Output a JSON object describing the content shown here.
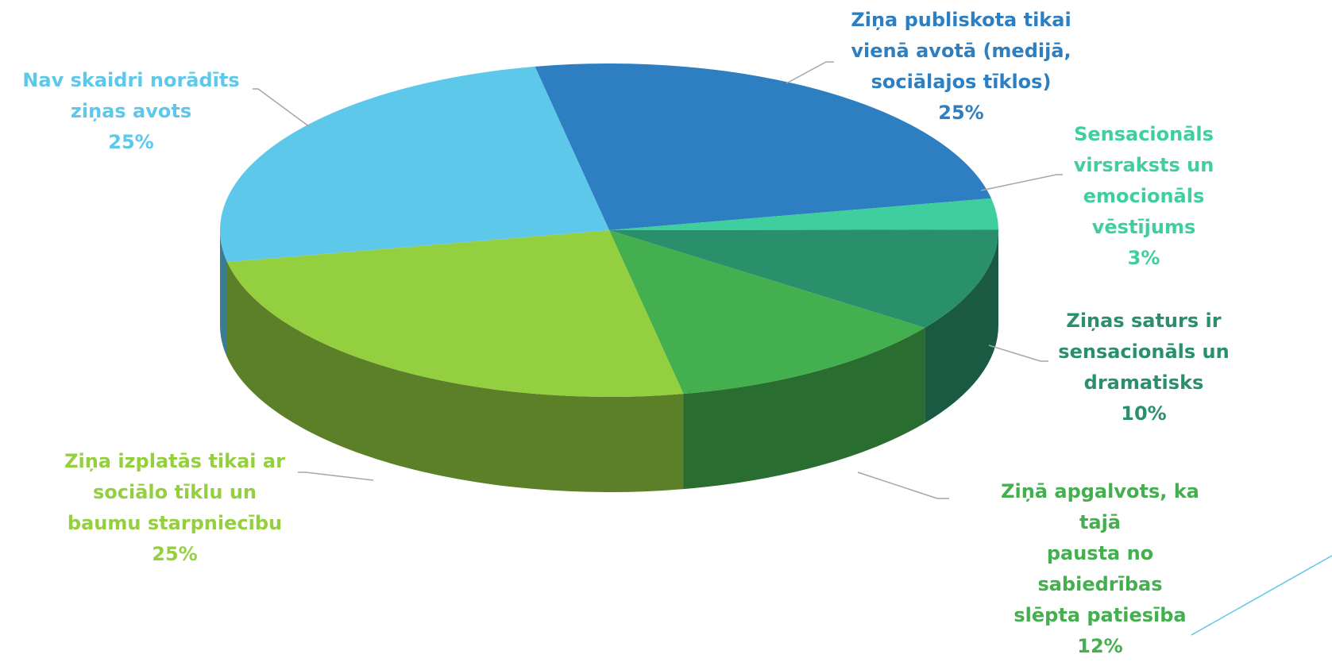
{
  "chart_data": {
    "type": "pie",
    "categories": [
      "Ziņa publiskota tikai\nvienā avotā (medijā,\nsociālajos tīklos)",
      "Sensacionāls\nvirsraksts un\nemocionāls\nvēstījums",
      "Ziņas saturs ir\nsensacionāls un\ndramatisks",
      "Ziņā apgalvots, ka tajā\npausta no sabiedrības\nslēpta patiesība",
      "Ziņa izplatās tikai ar\nsociālo tīklu un\nbaumu starpniecību",
      "Nav skaidri norādīts\nziņas avots"
    ],
    "values": [
      25,
      3,
      10,
      12,
      25,
      25
    ],
    "value_labels": [
      "25%",
      "3%",
      "10%",
      "12%",
      "25%",
      "25%"
    ],
    "colors": [
      "#2e7fc1",
      "#3fcf9e",
      "#2a8f6b",
      "#43af4e",
      "#94cf40",
      "#5dc8ea"
    ]
  }
}
